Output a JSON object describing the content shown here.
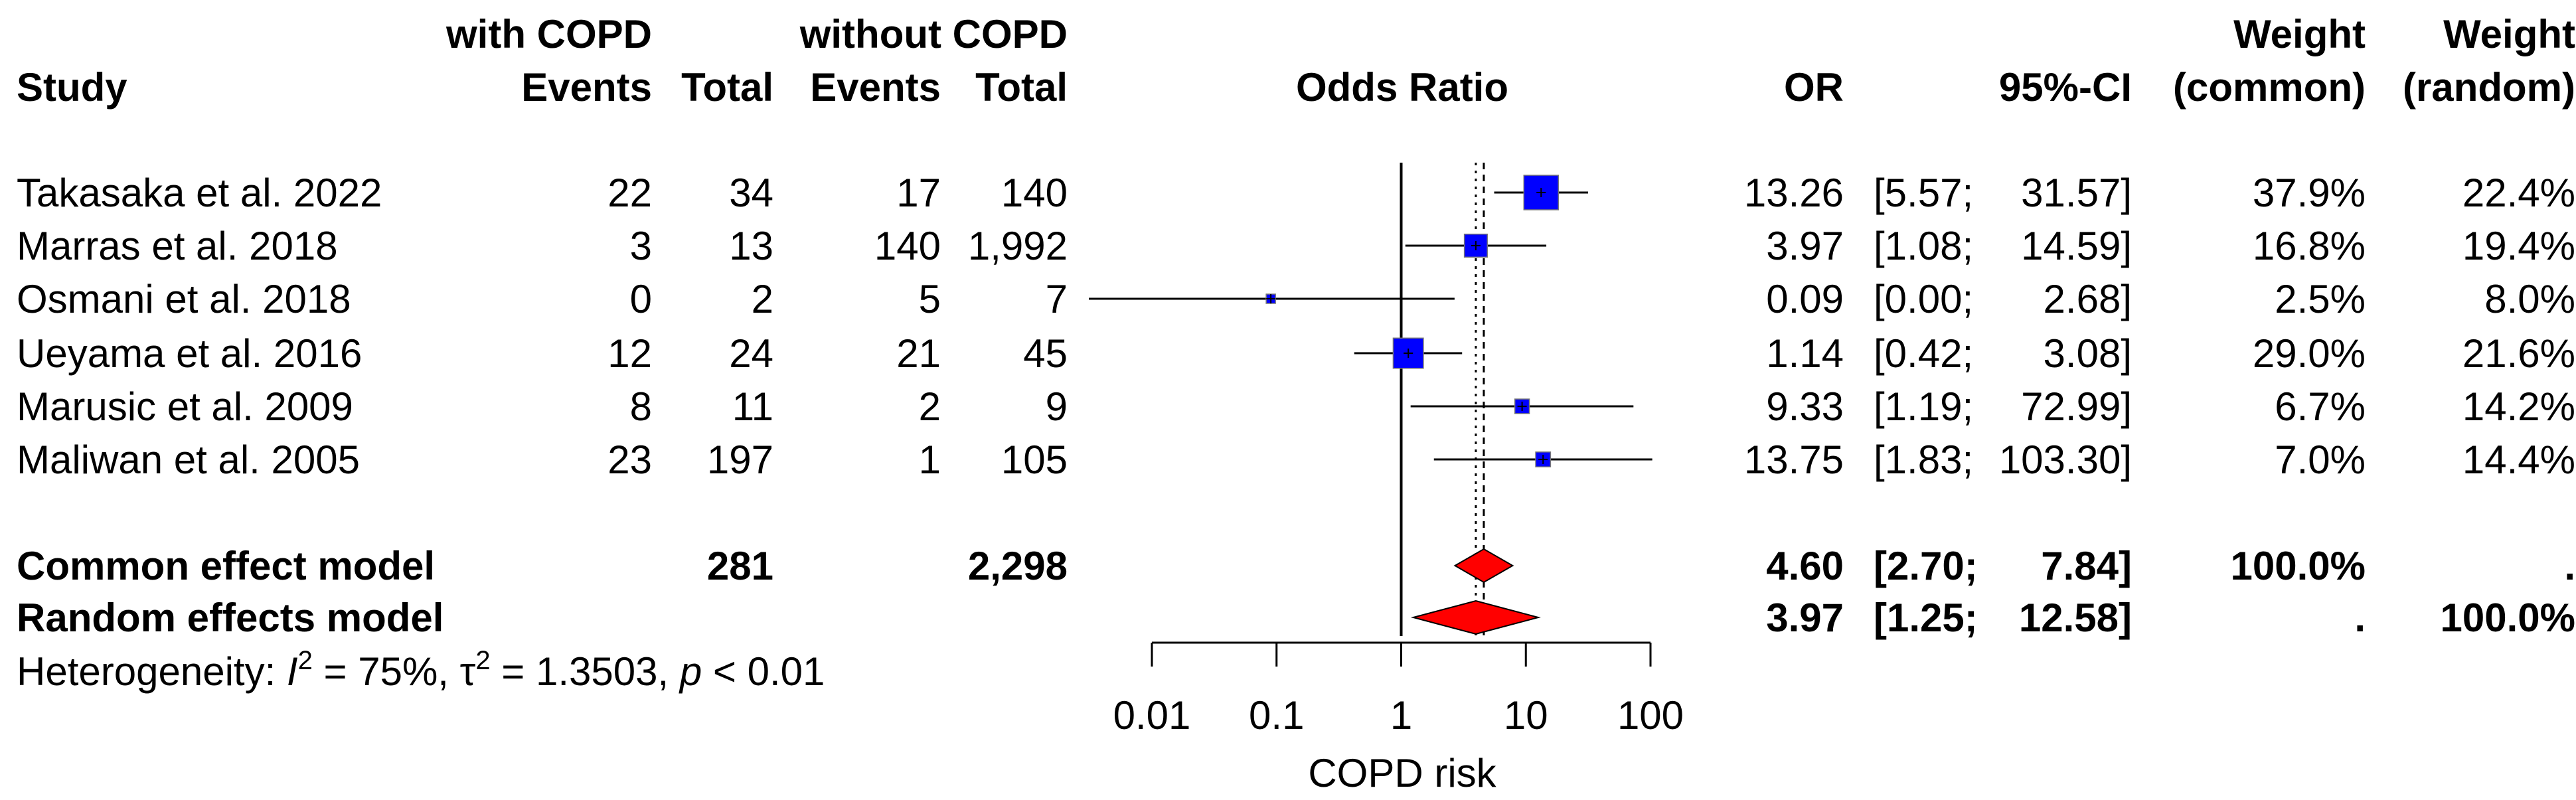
{
  "chart_data": {
    "type": "forest",
    "title": "",
    "headers": {
      "group_with": "with COPD",
      "group_without": "without COPD",
      "study": "Study",
      "events": "Events",
      "total": "Total",
      "odds_ratio": "Odds Ratio",
      "or": "OR",
      "ci": "95%-CI",
      "weight_line1": "Weight",
      "weight_common": "(common)",
      "weight_random": "(random)"
    },
    "studies": [
      {
        "name": "Takasaka et al. 2022",
        "ev_with": "22",
        "tot_with": "34",
        "ev_without": "17",
        "tot_without": "140",
        "or": 13.26,
        "lo": 5.57,
        "hi": 31.57,
        "or_txt": "13.26",
        "ci_lo_txt": "[5.57;",
        "ci_hi_txt": "31.57]",
        "w_common": "37.9%",
        "w_random": "22.4%",
        "w": 37.9
      },
      {
        "name": "Marras et al. 2018",
        "ev_with": "3",
        "tot_with": "13",
        "ev_without": "140",
        "tot_without": "1,992",
        "or": 3.97,
        "lo": 1.08,
        "hi": 14.59,
        "or_txt": "3.97",
        "ci_lo_txt": "[1.08;",
        "ci_hi_txt": "14.59]",
        "w_common": "16.8%",
        "w_random": "19.4%",
        "w": 16.8
      },
      {
        "name": "Osmani et al. 2018",
        "ev_with": "0",
        "tot_with": "2",
        "ev_without": "5",
        "tot_without": "7",
        "or": 0.09,
        "lo": 0.003,
        "hi": 2.68,
        "or_txt": "0.09",
        "ci_lo_txt": "[0.00;",
        "ci_hi_txt": "2.68]",
        "w_common": "2.5%",
        "w_random": "8.0%",
        "w": 2.5
      },
      {
        "name": "Ueyama et al. 2016",
        "ev_with": "12",
        "tot_with": "24",
        "ev_without": "21",
        "tot_without": "45",
        "or": 1.14,
        "lo": 0.42,
        "hi": 3.08,
        "or_txt": "1.14",
        "ci_lo_txt": "[0.42;",
        "ci_hi_txt": "3.08]",
        "w_common": "29.0%",
        "w_random": "21.6%",
        "w": 29.0
      },
      {
        "name": "Marusic et al. 2009",
        "ev_with": "8",
        "tot_with": "11",
        "ev_without": "2",
        "tot_without": "9",
        "or": 9.33,
        "lo": 1.19,
        "hi": 72.99,
        "or_txt": "9.33",
        "ci_lo_txt": "[1.19;",
        "ci_hi_txt": "72.99]",
        "w_common": "6.7%",
        "w_random": "14.2%",
        "w": 6.7
      },
      {
        "name": "Maliwan et al. 2005",
        "ev_with": "23",
        "tot_with": "197",
        "ev_without": "1",
        "tot_without": "105",
        "or": 13.75,
        "lo": 1.83,
        "hi": 103.3,
        "or_txt": "13.75",
        "ci_lo_txt": "[1.83;",
        "ci_hi_txt": "103.30]",
        "w_common": "7.0%",
        "w_random": "14.4%",
        "w": 7.0
      }
    ],
    "pooled": [
      {
        "name": "Common effect model",
        "tot_with": "281",
        "tot_without": "2,298",
        "or": 4.6,
        "lo": 2.7,
        "hi": 7.84,
        "or_txt": "4.60",
        "ci_lo_txt": "[2.70;",
        "ci_hi_txt": "7.84]",
        "w_common": "100.0%",
        "w_random": "."
      },
      {
        "name": "Random effects model",
        "tot_with": "",
        "tot_without": "",
        "or": 3.97,
        "lo": 1.25,
        "hi": 12.58,
        "or_txt": "3.97",
        "ci_lo_txt": "[1.25;",
        "ci_hi_txt": "12.58]",
        "w_common": ".",
        "w_random": "100.0%"
      }
    ],
    "heterogeneity": {
      "prefix": "Heterogeneity: ",
      "i_symbol": "I",
      "i2_value": " = 75%, ",
      "tau_symbol": "τ",
      "tau2_value": " = 1.3503, ",
      "p_symbol": "p",
      "p_value": " < 0.01",
      "sup": "2"
    },
    "x_axis": {
      "scale": "log",
      "ticks": [
        0.01,
        0.1,
        1,
        10,
        100
      ],
      "tick_labels": [
        "0.01",
        "0.1",
        "1",
        "10",
        "100"
      ],
      "label": "COPD risk",
      "reference_line": 1
    },
    "colors": {
      "study_box": "#0000ff",
      "pooled_diamond": "#ff0000",
      "line": "#000000"
    }
  }
}
